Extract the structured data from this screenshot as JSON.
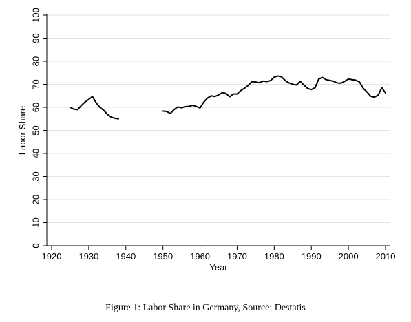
{
  "chart_data": {
    "type": "line",
    "title": "",
    "xlabel": "Year",
    "ylabel": "Labor Share",
    "xlim": [
      1920,
      2010
    ],
    "ylim": [
      0,
      100
    ],
    "x_ticks": [
      1920,
      1930,
      1940,
      1950,
      1960,
      1970,
      1980,
      1990,
      2000,
      2010
    ],
    "y_ticks": [
      0,
      10,
      20,
      30,
      40,
      50,
      60,
      70,
      80,
      90,
      100
    ],
    "grid": "horizontal",
    "legend": "none",
    "line_color": "#000000",
    "segments": [
      {
        "x": [
          1925,
          1926,
          1927,
          1928,
          1929,
          1930,
          1931,
          1932,
          1933,
          1934,
          1935,
          1936,
          1937,
          1938
        ],
        "y": [
          60.0,
          59.2,
          59.0,
          60.8,
          62.3,
          63.5,
          64.7,
          62.0,
          60.0,
          58.8,
          57.0,
          55.8,
          55.3,
          55.0
        ]
      },
      {
        "x": [
          1950,
          1951,
          1952,
          1953,
          1954,
          1955,
          1956,
          1957,
          1958,
          1959,
          1960,
          1961,
          1962,
          1963,
          1964,
          1965,
          1966,
          1967,
          1968,
          1969,
          1970,
          1971,
          1972,
          1973,
          1974,
          1975,
          1976,
          1977,
          1978,
          1979,
          1980,
          1981,
          1982,
          1983,
          1984,
          1985,
          1986,
          1987,
          1988,
          1989,
          1990,
          1991,
          1992,
          1993,
          1994,
          1995,
          1996,
          1997,
          1998,
          1999,
          2000,
          2001,
          2002,
          2003,
          2004,
          2005,
          2006,
          2007,
          2008,
          2009,
          2010
        ],
        "y": [
          58.4,
          58.2,
          57.3,
          59.0,
          60.2,
          59.8,
          60.3,
          60.4,
          60.9,
          60.4,
          59.7,
          62.3,
          64.0,
          65.0,
          64.7,
          65.4,
          66.4,
          66.0,
          64.6,
          65.8,
          65.8,
          67.3,
          68.3,
          69.5,
          71.2,
          71.0,
          70.7,
          71.4,
          71.2,
          71.6,
          73.1,
          73.6,
          73.2,
          71.6,
          70.6,
          70.0,
          69.7,
          71.3,
          69.7,
          68.2,
          67.7,
          68.5,
          72.3,
          73.0,
          72.0,
          71.7,
          71.3,
          70.6,
          70.5,
          71.3,
          72.3,
          72.0,
          71.8,
          71.0,
          68.2,
          66.7,
          64.8,
          64.4,
          65.3,
          68.5,
          66.2
        ]
      }
    ]
  },
  "caption": "Figure 1: Labor Share in Germany, Source: Destatis"
}
